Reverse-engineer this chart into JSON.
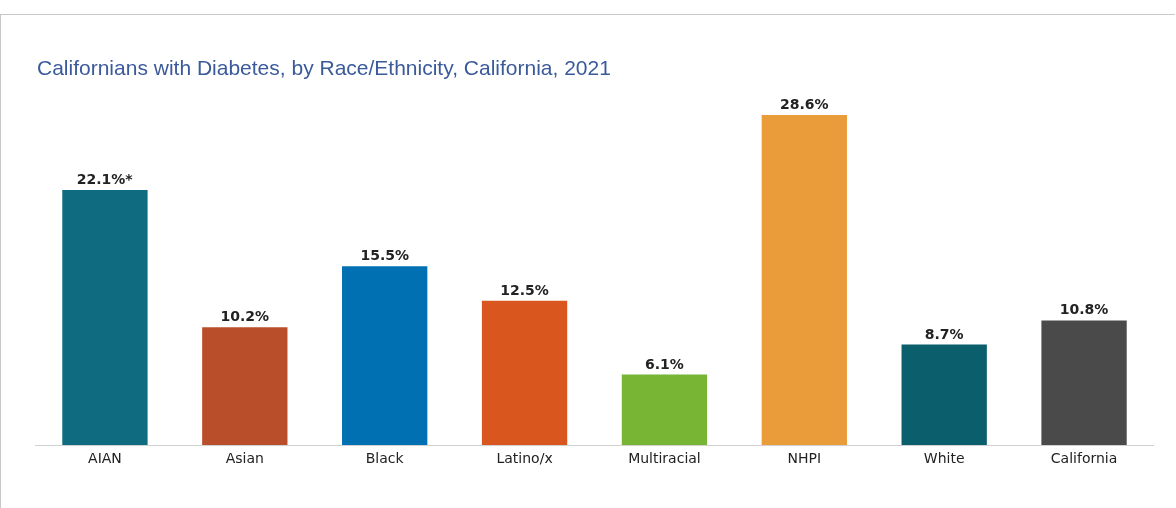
{
  "chart_data": {
    "type": "bar",
    "title": "Californians with Diabetes, by Race/Ethnicity, California, 2021",
    "categories": [
      "AIAN",
      "Asian",
      "Black",
      "Latino/x",
      "Multiracial",
      "NHPI",
      "White",
      "California"
    ],
    "values": [
      22.1,
      10.2,
      15.5,
      12.5,
      6.1,
      28.6,
      8.7,
      10.8
    ],
    "colors": [
      "#0e6b80",
      "#b94f2a",
      "#0070b3",
      "#d9561f",
      "#78b534",
      "#eb9c3a",
      "#0b5e6c",
      "#4a4a4a"
    ],
    "value_labels": [
      "22.1%*",
      "10.2%",
      "15.5%",
      "12.5%",
      "6.1%",
      "28.6%",
      "8.7%",
      "10.8%"
    ]
  }
}
